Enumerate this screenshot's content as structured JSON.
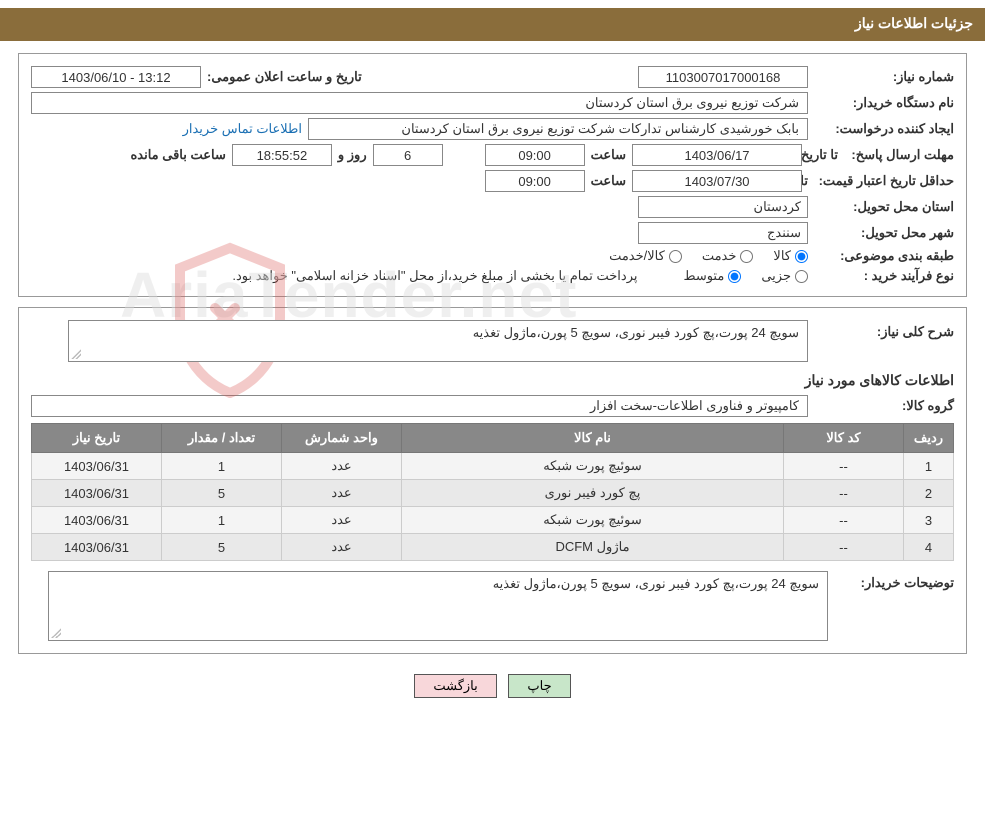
{
  "header": {
    "title": "جزئیات اطلاعات نیاز"
  },
  "labels": {
    "need_no": "شماره نیاز:",
    "announce_datetime": "تاریخ و ساعت اعلان عمومی:",
    "buyer_org": "نام دستگاه خریدار:",
    "requester": "ایجاد کننده درخواست:",
    "contact_link": "اطلاعات تماس خریدار",
    "deadline": "مهلت ارسال پاسخ:",
    "to_date": "تا تاریخ:",
    "time": "ساعت",
    "days_remaining_suffix": "روز و",
    "time_remaining_suffix": "ساعت باقی مانده",
    "min_validity": "حداقل تاریخ اعتبار قیمت:",
    "delivery_province": "استان محل تحویل:",
    "delivery_city": "شهر محل تحویل:",
    "subject_class": "طبقه بندی موضوعی:",
    "goods": "کالا",
    "service": "خدمت",
    "goods_service": "کالا/خدمت",
    "purchase_type": "نوع فرآیند خرید :",
    "partial": "جزیی",
    "medium": "متوسط",
    "payment_note": "پرداخت تمام یا بخشی از مبلغ خرید،از محل \"اسناد خزانه اسلامی\" خواهد بود.",
    "need_desc": "شرح کلی نیاز:",
    "required_goods_title": "اطلاعات کالاهای مورد نیاز",
    "goods_group": "گروه کالا:",
    "buyer_notes": "توضیحات خریدار:"
  },
  "fields": {
    "need_no": "1103007017000168",
    "announce_datetime": "13:12 - 1403/06/10",
    "buyer_org": "شرکت توزیع نیروی برق استان کردستان",
    "requester": "بابک خورشیدی کارشناس تدارکات شرکت توزیع نیروی برق استان کردستان",
    "deadline_date": "1403/06/17",
    "deadline_time": "09:00",
    "days_remaining": "6",
    "time_remaining": "18:55:52",
    "validity_date": "1403/07/30",
    "validity_time": "09:00",
    "province": "کردستان",
    "city": "سنندج",
    "need_desc": "سویچ 24 پورت،پچ کورد فیبر نوری، سویچ 5 پورن،ماژول تغذیه",
    "goods_group": "کامپیوتر و فناوری اطلاعات-سخت افزار",
    "buyer_notes": "سویچ 24 پورت،پچ کورد فیبر نوری، سویچ 5 پورن،ماژول تغذیه"
  },
  "radios": {
    "subject_selected": "goods",
    "purchase_selected": "medium"
  },
  "table": {
    "columns": [
      "ردیف",
      "کد کالا",
      "نام کالا",
      "واحد شمارش",
      "تعداد / مقدار",
      "تاریخ نیاز"
    ],
    "rows": [
      [
        "1",
        "--",
        "سوئیچ پورت شبکه",
        "عدد",
        "1",
        "1403/06/31"
      ],
      [
        "2",
        "--",
        "پچ کورد فیبر نوری",
        "عدد",
        "5",
        "1403/06/31"
      ],
      [
        "3",
        "--",
        "سوئیچ پورت شبکه",
        "عدد",
        "1",
        "1403/06/31"
      ],
      [
        "4",
        "--",
        "ماژول DCFM",
        "عدد",
        "5",
        "1403/06/31"
      ]
    ],
    "col_widths": [
      "50px",
      "120px",
      "auto",
      "120px",
      "120px",
      "130px"
    ]
  },
  "buttons": {
    "print": "چاپ",
    "back": "بازگشت"
  },
  "watermark": {
    "text": "AriaTender.net"
  },
  "colors": {
    "header_bg": "#8a6d3b",
    "header_fg": "#ffffff",
    "table_header_bg": "#888888",
    "btn_green": "#c8e6c9",
    "btn_pink": "#f8d7da",
    "link": "#1a6fb3"
  }
}
